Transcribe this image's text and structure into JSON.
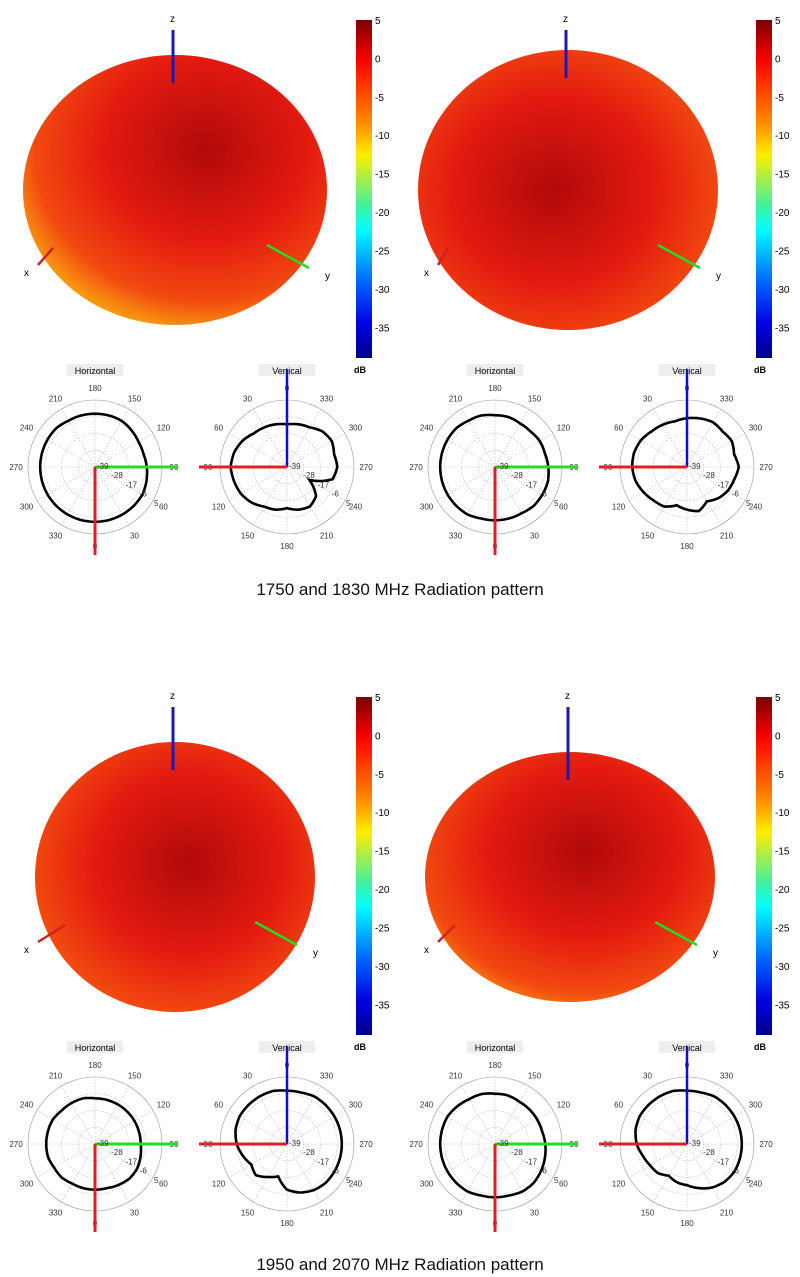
{
  "captions": [
    "1750 and 1830 MHz Radiation pattern",
    "1950 and 2070 MHz Radiation pattern"
  ],
  "axis_labels": {
    "x": "x",
    "y": "y",
    "z": "z"
  },
  "colorbar": {
    "unit": "dB",
    "range": [
      5,
      -39
    ],
    "ticks": [
      "5",
      "0",
      "-5",
      "-10",
      "-15",
      "-20",
      "-25",
      "-30",
      "-35"
    ],
    "colormap": "jet"
  },
  "polar": {
    "horizontal_title": "Horizontal",
    "vertical_title": "Vertical",
    "radial_ticks": [
      "-39",
      "-28",
      "-17",
      "-6",
      "5"
    ],
    "horizontal_angle_labels": [
      "0",
      "30",
      "60",
      "90",
      "120",
      "150",
      "180",
      "210",
      "240",
      "270",
      "300",
      "330"
    ],
    "vertical_angle_labels": [
      "0",
      "30",
      "60",
      "90",
      "120",
      "150",
      "180",
      "210",
      "240",
      "270",
      "300",
      "330"
    ],
    "colors": {
      "x_axis": "#e02020",
      "y_axis": "#22dd22",
      "z_axis": "#1010c0",
      "pattern": "#000000"
    }
  },
  "panels": [
    {
      "horizontal_db": [
        -3,
        -3,
        -3,
        -3,
        -3,
        -4,
        -5,
        -6,
        -6,
        -5,
        -4,
        -4,
        -4,
        -4,
        -4,
        -3,
        -3,
        -3,
        -3,
        -3,
        -3,
        -3,
        -3,
        -3
      ],
      "vertical_db": [
        -11,
        -10,
        -9,
        -8,
        -5,
        -3,
        -2,
        -3,
        -4,
        -6,
        -9,
        -10,
        -12,
        -10,
        -9,
        -12,
        -22,
        -8,
        -6,
        -7,
        -5,
        -6,
        -9,
        -10
      ]
    },
    {
      "horizontal_db": [
        -4,
        -4,
        -4,
        -3,
        -3,
        -3,
        -4,
        -5,
        -5,
        -6,
        -6,
        -5,
        -5,
        -4,
        -4,
        -3,
        -3,
        -3,
        -3,
        -3,
        -3,
        -3,
        -3,
        -4
      ],
      "vertical_db": [
        -7,
        -8,
        -7,
        -6,
        -4,
        -3,
        -3,
        -4,
        -6,
        -8,
        -9,
        -13,
        -11,
        -9,
        -13,
        -10,
        -8,
        -7,
        -5,
        -7,
        -5,
        -6,
        -5,
        -6
      ]
    },
    {
      "horizontal_db": [
        -9,
        -9,
        -8,
        -7,
        -7,
        -8,
        -9,
        -9,
        -9,
        -9,
        -9,
        -9,
        -9,
        -8,
        -8,
        -8,
        -7,
        -7,
        -7,
        -7,
        -8,
        -8,
        -9,
        -9
      ],
      "vertical_db": [
        -4,
        -3,
        -3,
        -3,
        -3,
        -4,
        -6,
        -9,
        -12,
        -10,
        -14,
        -17,
        -9,
        -6,
        -4,
        -3,
        -3,
        -3,
        -3,
        -3,
        -3,
        -3,
        -3,
        -4
      ]
    },
    {
      "horizontal_db": [
        -4,
        -4,
        -3,
        -3,
        -4,
        -5,
        -6,
        -7,
        -7,
        -7,
        -7,
        -6,
        -6,
        -5,
        -5,
        -4,
        -3,
        -3,
        -3,
        -3,
        -3,
        -3,
        -3,
        -4
      ],
      "vertical_db": [
        -4,
        -3,
        -3,
        -3,
        -3,
        -4,
        -6,
        -9,
        -11,
        -12,
        -15,
        -13,
        -12,
        -9,
        -6,
        -4,
        -3,
        -3,
        -3,
        -3,
        -3,
        -3,
        -3,
        -4
      ]
    }
  ]
}
